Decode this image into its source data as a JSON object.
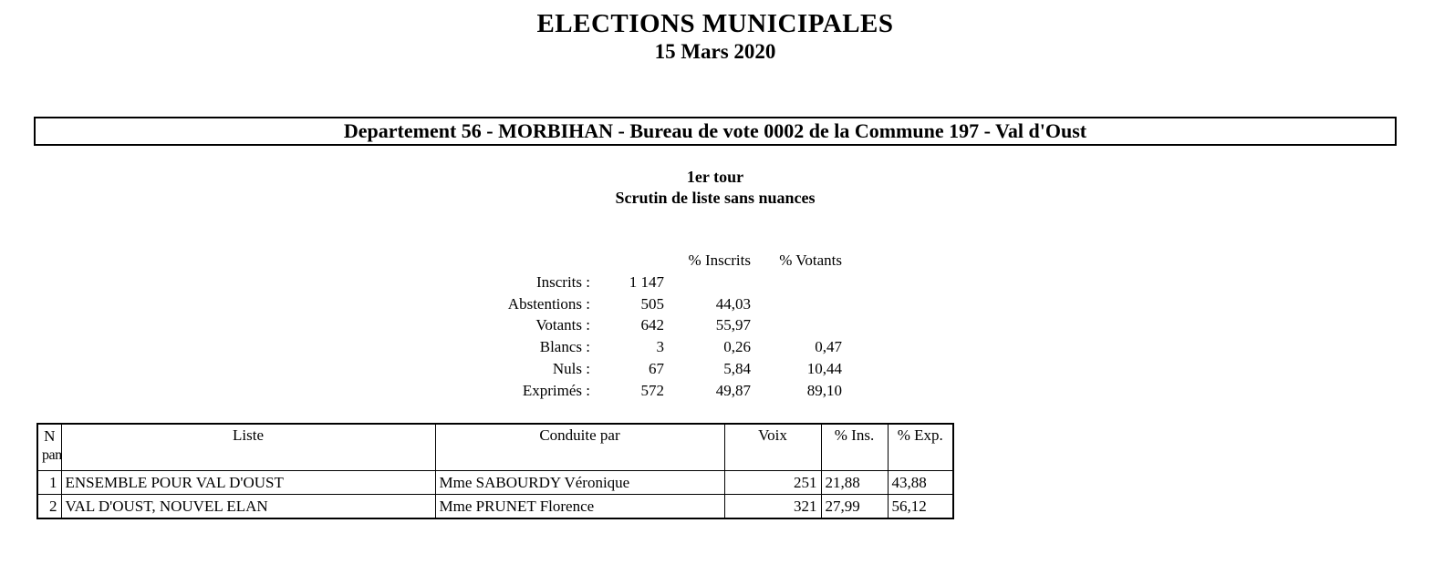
{
  "header": {
    "title": "ELECTIONS MUNICIPALES",
    "date": "15 Mars 2020",
    "department_banner": "Departement 56 - MORBIHAN - Bureau de vote 0002 de la Commune 197 - Val d'Oust",
    "round": "1er tour",
    "ballot_type": "Scrutin de liste sans nuances"
  },
  "stats": {
    "col_headers": {
      "pct_inscrits": "% Inscrits",
      "pct_votants": "% Votants"
    },
    "rows": [
      {
        "label": "Inscrits :",
        "value": "1 147",
        "pct_inscrits": "",
        "pct_votants": ""
      },
      {
        "label": "Abstentions :",
        "value": "505",
        "pct_inscrits": "44,03",
        "pct_votants": ""
      },
      {
        "label": "Votants :",
        "value": "642",
        "pct_inscrits": "55,97",
        "pct_votants": ""
      },
      {
        "label": "Blancs :",
        "value": "3",
        "pct_inscrits": "0,26",
        "pct_votants": "0,47"
      },
      {
        "label": "Nuls :",
        "value": "67",
        "pct_inscrits": "5,84",
        "pct_votants": "10,44"
      },
      {
        "label": "Exprimés :",
        "value": "572",
        "pct_inscrits": "49,87",
        "pct_votants": "89,10"
      }
    ]
  },
  "results_table": {
    "headers": {
      "panel_line1": "N",
      "panel_line2": "pan",
      "liste": "Liste",
      "conduite": "Conduite par",
      "voix": "Voix",
      "pct_ins": "% Ins.",
      "pct_exp": "% Exp."
    },
    "rows": [
      {
        "panel": "1",
        "liste": "ENSEMBLE POUR VAL D'OUST",
        "conduite": "Mme SABOURDY Véronique",
        "voix": "251",
        "pct_ins": "21,88",
        "pct_exp": "43,88"
      },
      {
        "panel": "2",
        "liste": "VAL D'OUST, NOUVEL ELAN",
        "conduite": "Mme PRUNET Florence",
        "voix": "321",
        "pct_ins": "27,99",
        "pct_exp": "56,12"
      }
    ]
  },
  "colors": {
    "text": "#000000",
    "background": "#ffffff",
    "border": "#000000"
  }
}
